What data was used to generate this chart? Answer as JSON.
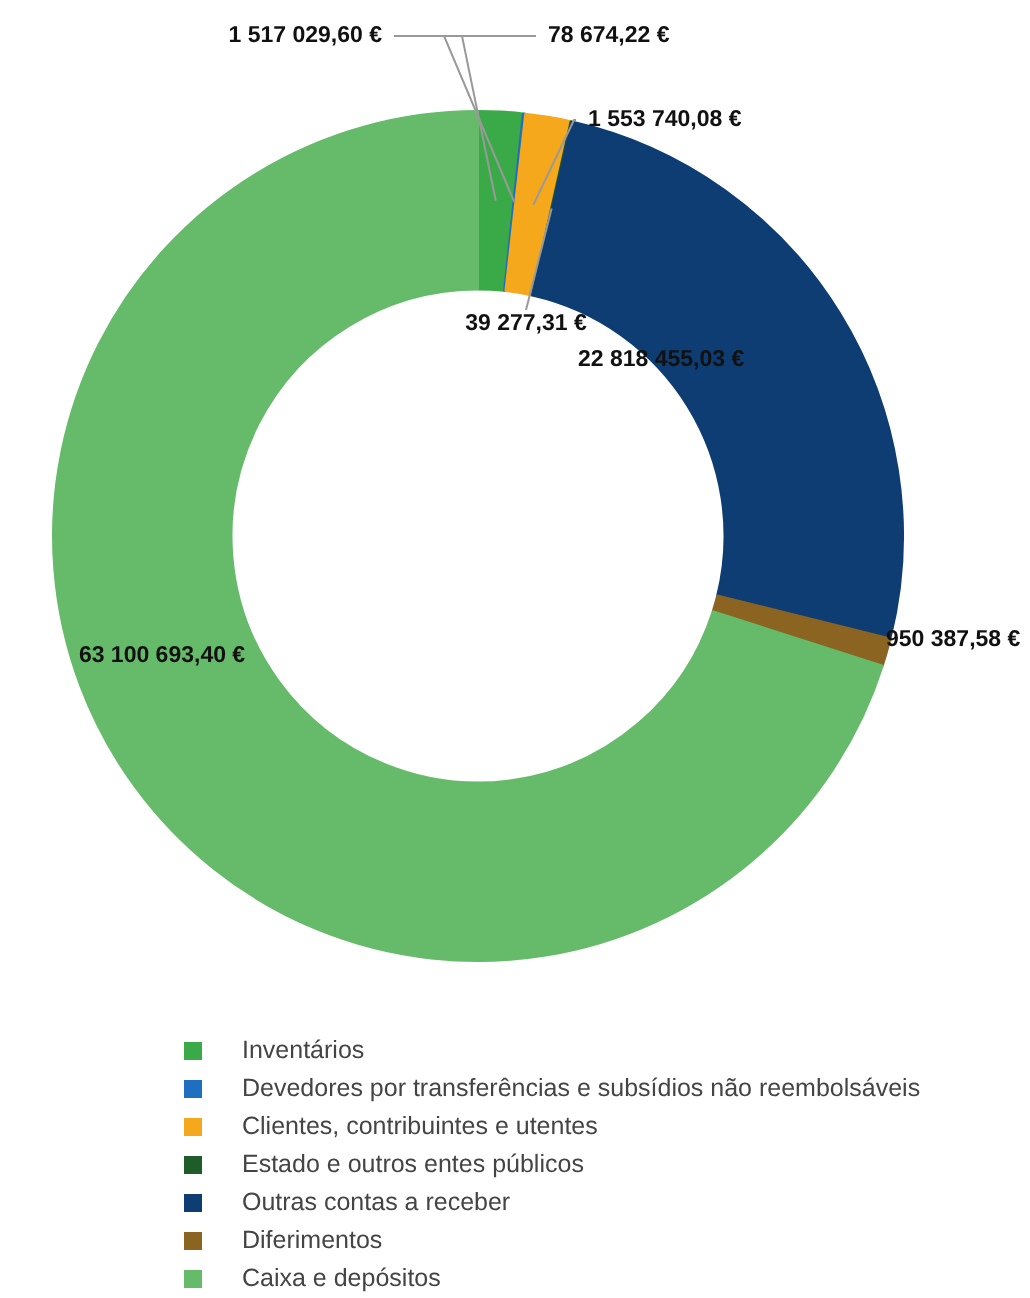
{
  "chart_data": {
    "type": "donut",
    "categories": [
      "Inventários",
      "Devedores por transferências e subsídios não reembolsáveis",
      "Clientes, contribuintes e utentes",
      "Estado e outros entes públicos",
      "Outras contas a receber",
      "Diferimentos",
      "Caixa e depósitos"
    ],
    "values": [
      1517029.6,
      78674.22,
      1553740.08,
      39277.31,
      22818455.03,
      950387.58,
      63100693.4
    ],
    "value_labels": [
      "1 517 029,60 €",
      "78 674,22 €",
      "1 553 740,08 €",
      "39 277,31 €",
      "22 818 455,03 €",
      "950 387,58 €",
      "63 100 693,40 €"
    ],
    "colors": [
      "#3aaa48",
      "#1f6fc1",
      "#f5a81c",
      "#1e5c2a",
      "#0e3d73",
      "#8a6420",
      "#66bb6a"
    ],
    "legend": "bottom"
  }
}
